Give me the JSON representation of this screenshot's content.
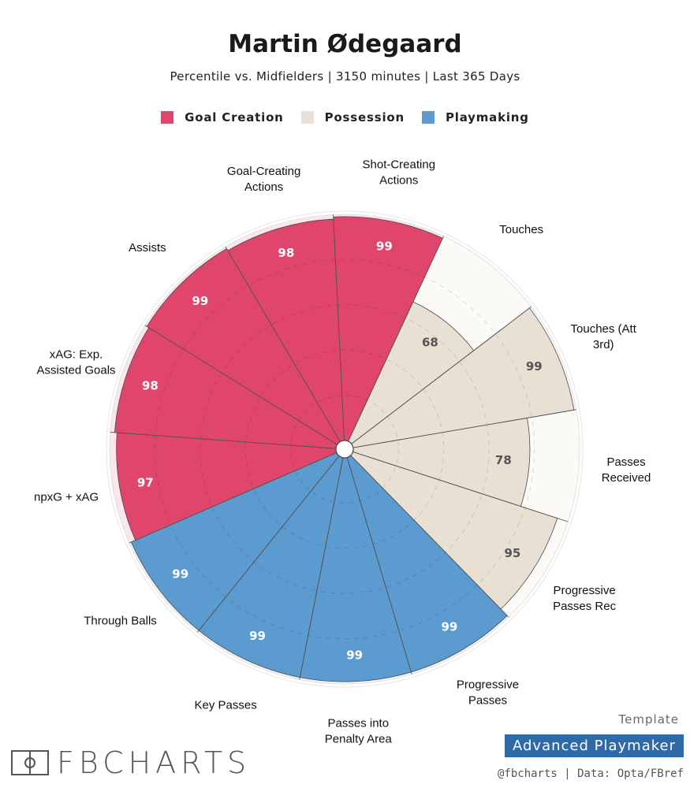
{
  "header": {
    "title": "Martin Ødegaard",
    "subtitle": "Percentile vs. Midfielders | 3150 minutes | Last 365 Days"
  },
  "legend": [
    {
      "label": "Goal Creation",
      "color": "#e0466b"
    },
    {
      "label": "Possession",
      "color": "#e8e0d2"
    },
    {
      "label": "Playmaking",
      "color": "#5b9bcf"
    }
  ],
  "chart_data": {
    "type": "polar-bar",
    "scale": [
      0,
      100
    ],
    "metrics": [
      {
        "label": "Shot-Creating Actions",
        "value": 99,
        "group": "Goal Creation"
      },
      {
        "label": "Touches",
        "value": 68,
        "group": "Possession"
      },
      {
        "label": "Touches (Att 3rd)",
        "value": 99,
        "group": "Possession"
      },
      {
        "label": "Passes Received",
        "value": 78,
        "group": "Possession"
      },
      {
        "label": "Progressive Passes Rec",
        "value": 95,
        "group": "Possession"
      },
      {
        "label": "Progressive Passes",
        "value": 99,
        "group": "Playmaking"
      },
      {
        "label": "Passes into Penalty Area",
        "value": 99,
        "group": "Playmaking"
      },
      {
        "label": "Key Passes",
        "value": 99,
        "group": "Playmaking"
      },
      {
        "label": "Through Balls",
        "value": 99,
        "group": "Playmaking"
      },
      {
        "label": "npxG + xAG",
        "value": 97,
        "group": "Goal Creation"
      },
      {
        "label": "xAG: Exp. Assisted Goals",
        "value": 98,
        "group": "Goal Creation"
      },
      {
        "label": "Assists",
        "value": 99,
        "group": "Goal Creation"
      },
      {
        "label": "Goal-Creating Actions",
        "value": 98,
        "group": "Goal Creation"
      }
    ],
    "group_colors": {
      "Goal Creation": "#e0466b",
      "Possession": "#e8e0d2",
      "Playmaking": "#5b9bcf"
    },
    "value_label_colors": {
      "Goal Creation": "#ffffff",
      "Possession": "#555555",
      "Playmaking": "#ffffff"
    }
  },
  "footer": {
    "template_label": "Template",
    "template_name": "Advanced Playmaker",
    "credit": "@fbcharts | Data: Opta/FBref",
    "brand": "FBCHARTS"
  }
}
